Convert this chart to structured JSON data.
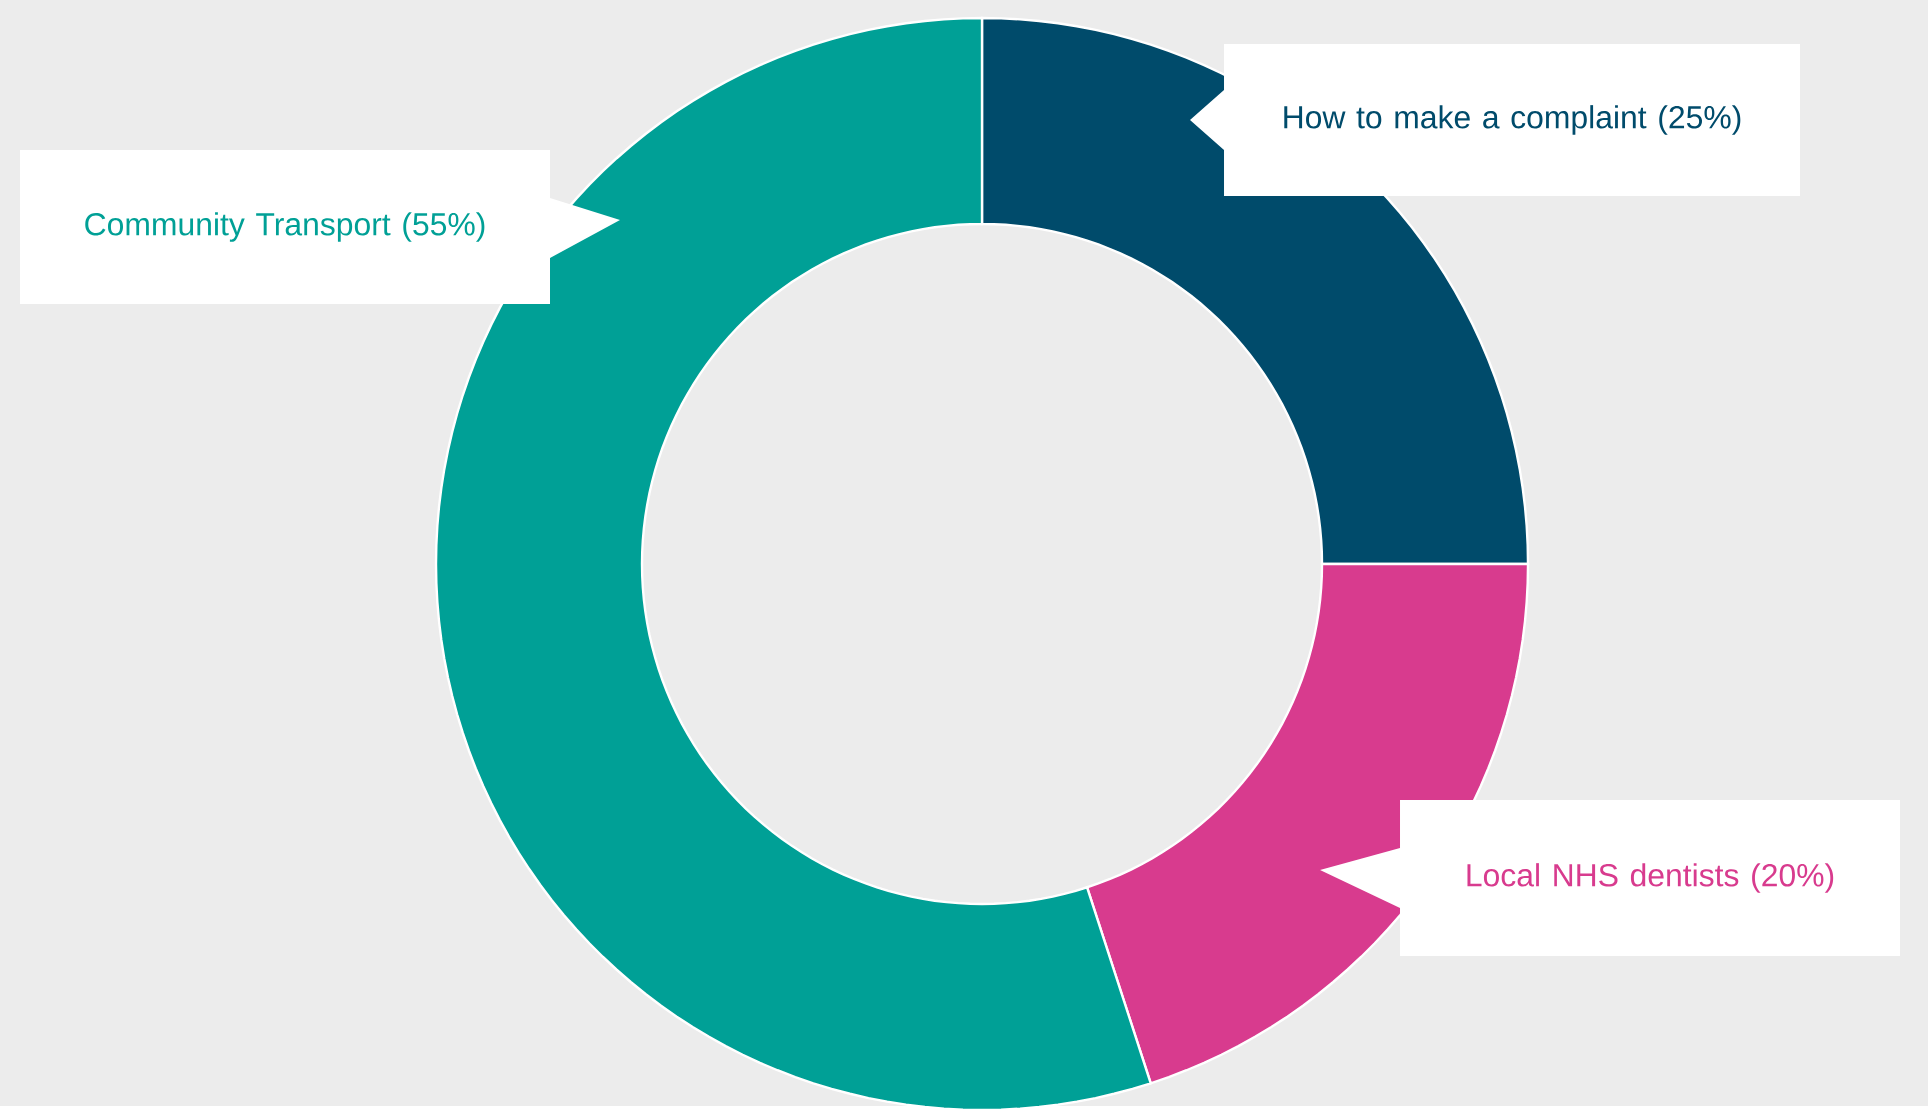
{
  "chart_data": {
    "type": "donut",
    "categories": [
      "How to make a complaint",
      "Local NHS dentists",
      "Community Transport"
    ],
    "values": [
      25,
      20,
      55
    ],
    "value_labels": [
      "(25%)",
      "(20%)",
      "(55%)"
    ],
    "colors": [
      "#004b6b",
      "#d83b8e",
      "#00a096"
    ]
  }
}
